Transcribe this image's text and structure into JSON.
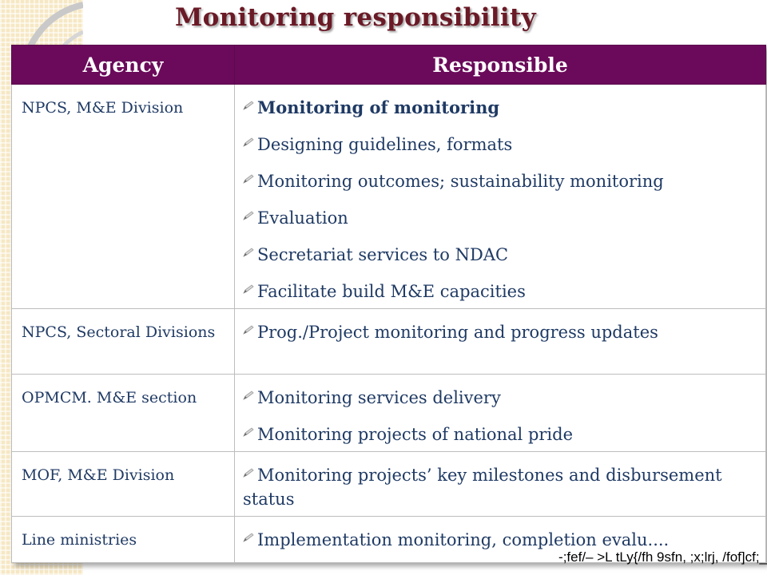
{
  "title": "Monitoring responsibility",
  "table": {
    "headers": {
      "agency": "Agency",
      "responsible": "Responsible"
    },
    "rows": [
      {
        "agency": "NPCS, M&E Division",
        "items": [
          "Monitoring of monitoring",
          "Designing guidelines, formats",
          "Monitoring outcomes; sustainability monitoring",
          "Evaluation",
          "Secretariat services to NDAC",
          "Facilitate build M&E capacities"
        ]
      },
      {
        "agency": "NPCS, Sectoral Divisions",
        "items": [
          "Prog./Project monitoring and progress updates"
        ]
      },
      {
        "agency": "OPMCM. M&E section",
        "items": [
          "Monitoring services delivery",
          "Monitoring projects of national pride"
        ]
      },
      {
        "agency": "MOF, M&E Division",
        "items": [
          "Monitoring projects’ key milestones and disbursement status"
        ]
      },
      {
        "agency": "Line ministries",
        "items": [
          "Implementation monitoring, completion evalu...."
        ]
      }
    ]
  },
  "footer": "-;fef/– >L tLy{/fh 9sfn, ;x;lrj, /fof]cf;_",
  "colors": {
    "title": "#6a1a26",
    "header_bg": "#6b0a5a",
    "body_text": "#1f3a64",
    "strip": "#f6e8c4"
  },
  "icons": {
    "bullet": "pencil-bullet-icon"
  }
}
